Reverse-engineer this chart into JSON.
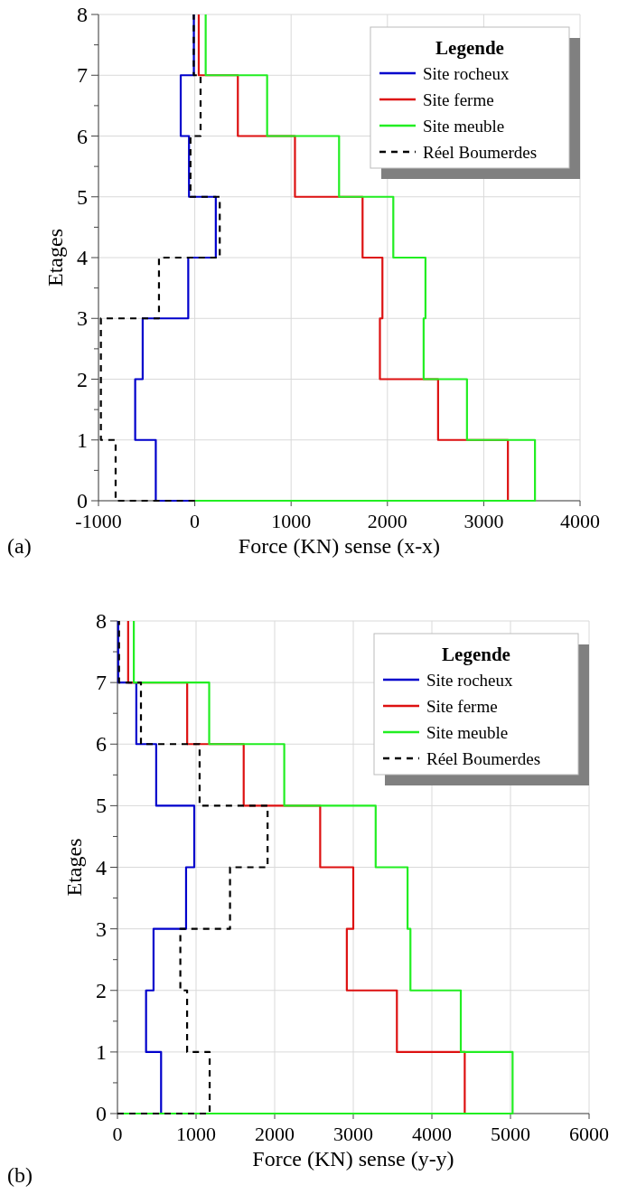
{
  "chart_data": [
    {
      "type": "line",
      "xlabel": "Force (KN) sense (x-x)",
      "ylabel": "Etages",
      "legend_title": "Legende",
      "legend": "top right",
      "grid": true,
      "marker": "none",
      "annotations": [
        "(a)"
      ],
      "xlim": [
        -1000,
        4000
      ],
      "xticks": [
        -1000,
        0,
        1000,
        2000,
        3000,
        4000
      ],
      "ylim": [
        0,
        8
      ],
      "yticks": [
        0,
        {
          "value": 0.5,
          "label": null
        },
        1,
        {
          "value": 1.5,
          "label": null
        },
        2,
        {
          "value": 2.5,
          "label": null
        },
        3,
        {
          "value": 3.5,
          "label": null
        },
        4,
        {
          "value": 4.5,
          "label": null
        },
        5,
        {
          "value": 5.5,
          "label": null
        },
        6,
        {
          "value": 6.5,
          "label": null
        },
        7,
        {
          "value": 7.5,
          "label": null
        },
        8
      ],
      "series": [
        {
          "name": "Site rocheux",
          "color": "#0000cc",
          "line_style": "solid",
          "x": [
            0,
            -405,
            -405,
            -619,
            -619,
            -541,
            -541,
            -68,
            -68,
            218,
            218,
            -60,
            -60,
            -146,
            -146,
            -10,
            -10
          ],
          "values": [
            0,
            0,
            1,
            1,
            2,
            2,
            3,
            3,
            4,
            4,
            5,
            5,
            6,
            6,
            7,
            7,
            8
          ]
        },
        {
          "name": "Site ferme",
          "color": "#dd1111",
          "line_style": "solid",
          "x": [
            0,
            3251,
            3251,
            2526,
            2526,
            1922,
            1922,
            1948,
            1948,
            1742,
            1742,
            1040,
            1040,
            447,
            447,
            41,
            41
          ],
          "values": [
            0,
            0,
            1,
            1,
            2,
            2,
            3,
            3,
            4,
            4,
            5,
            5,
            6,
            6,
            7,
            7,
            8
          ]
        },
        {
          "name": "Site meuble",
          "color": "#22ee22",
          "line_style": "solid",
          "x": [
            0,
            3532,
            3532,
            2826,
            2826,
            2376,
            2376,
            2395,
            2395,
            2061,
            2061,
            1498,
            1498,
            751,
            751,
            113,
            113
          ],
          "values": [
            0,
            0,
            1,
            1,
            2,
            2,
            3,
            3,
            4,
            4,
            5,
            5,
            6,
            6,
            7,
            7,
            8
          ]
        },
        {
          "name": "Réel Boumerdes",
          "color": "#000000",
          "line_style": "dashed",
          "x": [
            0,
            -822,
            -822,
            -975,
            -975,
            -975,
            -975,
            -372,
            -372,
            259,
            259,
            -45,
            -45,
            60,
            60,
            -11,
            -11
          ],
          "values": [
            0,
            0,
            1,
            1,
            2,
            2,
            3,
            3,
            4,
            4,
            5,
            5,
            6,
            6,
            7,
            7,
            8
          ]
        }
      ]
    },
    {
      "type": "line",
      "xlabel": "Force (KN) sense (y-y)",
      "ylabel": "Etages",
      "legend_title": "Legende",
      "legend": "top right",
      "grid": true,
      "marker": "none",
      "annotations": [
        "(b)"
      ],
      "xlim": [
        0,
        6000
      ],
      "xticks": [
        0,
        1000,
        2000,
        3000,
        4000,
        5000,
        6000
      ],
      "ylim": [
        0,
        8
      ],
      "yticks": [
        0,
        {
          "value": 0.5,
          "label": null
        },
        1,
        {
          "value": 1.5,
          "label": null
        },
        2,
        {
          "value": 2.5,
          "label": null
        },
        3,
        {
          "value": 3.5,
          "label": null
        },
        4,
        {
          "value": 4.5,
          "label": null
        },
        5,
        {
          "value": 5.5,
          "label": null
        },
        6,
        {
          "value": 6.5,
          "label": null
        },
        7,
        {
          "value": 7.5,
          "label": null
        },
        8
      ],
      "series": [
        {
          "name": "Site rocheux",
          "color": "#0000cc",
          "line_style": "solid",
          "x": [
            0,
            555,
            555,
            364,
            364,
            459,
            459,
            873,
            873,
            977,
            977,
            493,
            493,
            240,
            240,
            10,
            10
          ],
          "values": [
            0,
            0,
            1,
            1,
            2,
            2,
            3,
            3,
            4,
            4,
            5,
            5,
            6,
            6,
            7,
            7,
            8
          ]
        },
        {
          "name": "Site ferme",
          "color": "#dd1111",
          "line_style": "solid",
          "x": [
            0,
            4418,
            4418,
            3555,
            3555,
            2918,
            2918,
            3000,
            3000,
            2579,
            2579,
            1606,
            1606,
            887,
            887,
            136,
            136
          ],
          "values": [
            0,
            0,
            1,
            1,
            2,
            2,
            3,
            3,
            4,
            4,
            5,
            5,
            6,
            6,
            7,
            7,
            8
          ]
        },
        {
          "name": "Site meuble",
          "color": "#22ee22",
          "line_style": "solid",
          "x": [
            0,
            5027,
            5027,
            4368,
            4368,
            3727,
            3727,
            3691,
            3691,
            3285,
            3285,
            2122,
            2122,
            1167,
            1167,
            208,
            208
          ],
          "values": [
            0,
            0,
            1,
            1,
            2,
            2,
            3,
            3,
            4,
            4,
            5,
            5,
            6,
            6,
            7,
            7,
            8
          ]
        },
        {
          "name": "Réel Boumerdes",
          "color": "#000000",
          "line_style": "dashed",
          "x": [
            0,
            1173,
            1173,
            886,
            886,
            800,
            800,
            1432,
            1432,
            1910,
            1910,
            1045,
            1045,
            299,
            299,
            20,
            20
          ],
          "values": [
            0,
            0,
            1,
            1,
            2,
            2,
            3,
            3,
            4,
            4,
            5,
            5,
            6,
            6,
            7,
            7,
            8
          ]
        }
      ]
    }
  ]
}
